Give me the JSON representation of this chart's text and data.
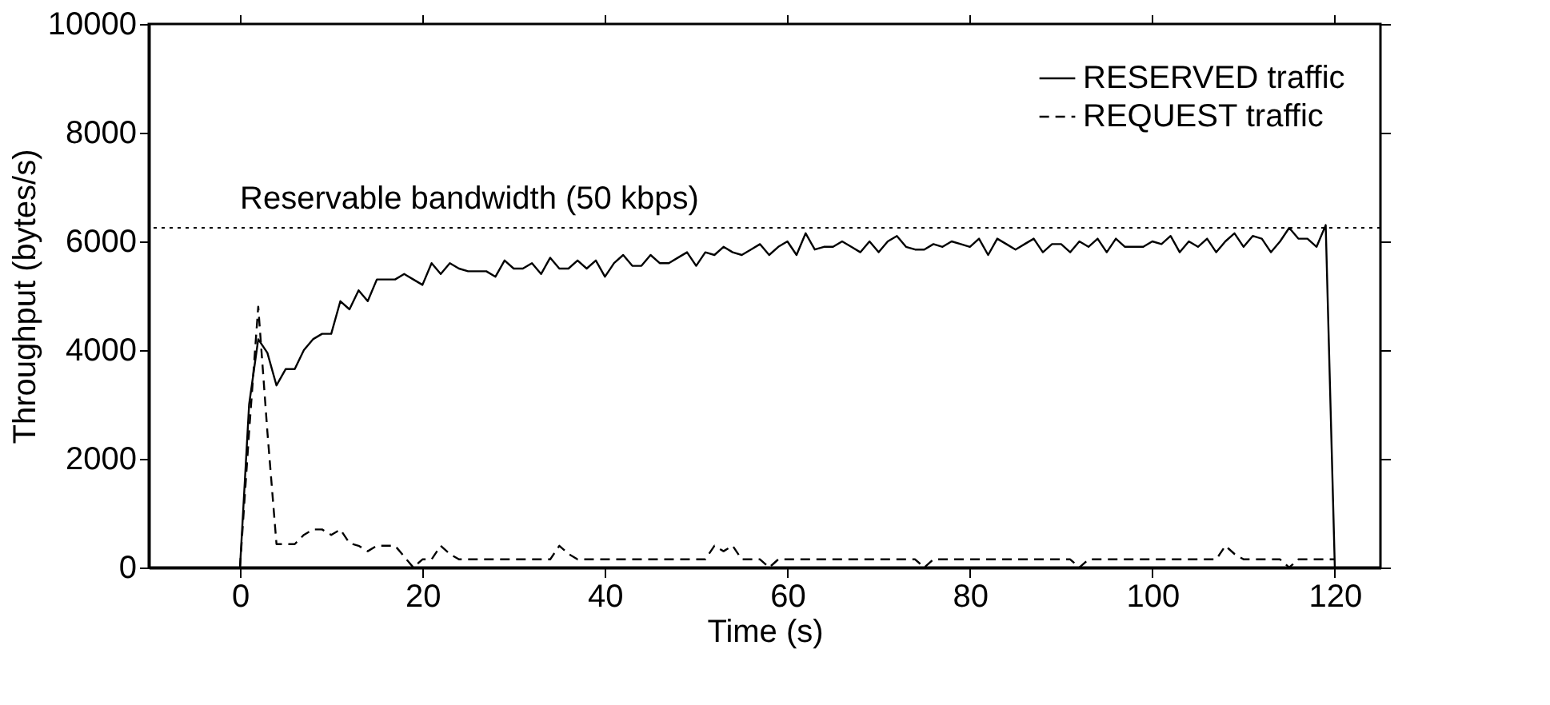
{
  "chart_data": {
    "type": "line",
    "xlabel": "Time (s)",
    "ylabel": "Throughput (bytes/s)",
    "x": [
      0,
      1,
      2,
      3,
      4,
      5,
      6,
      7,
      8,
      9,
      10,
      11,
      12,
      13,
      14,
      15,
      16,
      17,
      18,
      19,
      20,
      21,
      22,
      23,
      24,
      25,
      26,
      27,
      28,
      29,
      30,
      31,
      32,
      33,
      34,
      35,
      36,
      37,
      38,
      39,
      40,
      41,
      42,
      43,
      44,
      45,
      46,
      47,
      48,
      49,
      50,
      51,
      52,
      53,
      54,
      55,
      56,
      57,
      58,
      59,
      60,
      61,
      62,
      63,
      64,
      65,
      66,
      67,
      68,
      69,
      70,
      71,
      72,
      73,
      74,
      75,
      76,
      77,
      78,
      79,
      80,
      81,
      82,
      83,
      84,
      85,
      86,
      87,
      88,
      89,
      90,
      91,
      92,
      93,
      94,
      95,
      96,
      97,
      98,
      99,
      100,
      101,
      102,
      103,
      104,
      105,
      106,
      107,
      108,
      109,
      110,
      111,
      112,
      113,
      114,
      115,
      116,
      117,
      118,
      119,
      120
    ],
    "series": [
      {
        "name": "RESERVED traffic",
        "color": "#000000",
        "line_style": "solid",
        "values": [
          0,
          3000,
          4200,
          3950,
          3350,
          3650,
          3650,
          4000,
          4200,
          4300,
          4300,
          4900,
          4750,
          5100,
          4900,
          5300,
          5300,
          5300,
          5400,
          5300,
          5200,
          5600,
          5400,
          5600,
          5500,
          5450,
          5450,
          5450,
          5350,
          5650,
          5500,
          5500,
          5600,
          5400,
          5700,
          5500,
          5500,
          5650,
          5500,
          5650,
          5350,
          5600,
          5750,
          5550,
          5550,
          5750,
          5600,
          5600,
          5700,
          5800,
          5550,
          5800,
          5750,
          5900,
          5800,
          5750,
          5850,
          5950,
          5750,
          5900,
          6000,
          5750,
          6150,
          5850,
          5900,
          5900,
          6000,
          5900,
          5800,
          6000,
          5800,
          6000,
          6100,
          5900,
          5850,
          5850,
          5950,
          5900,
          6000,
          5950,
          5900,
          6050,
          5750,
          6050,
          5950,
          5850,
          5950,
          6050,
          5800,
          5950,
          5950,
          5800,
          6000,
          5900,
          6050,
          5800,
          6050,
          5900,
          5900,
          5900,
          6000,
          5950,
          6100,
          5800,
          6000,
          5900,
          6050,
          5800,
          6000,
          6150,
          5900,
          6100,
          6050,
          5800,
          6000,
          6250,
          6050,
          6050,
          5900,
          6300,
          0
        ]
      },
      {
        "name": "REQUEST traffic",
        "color": "#000000",
        "line_style": "dashed",
        "values": [
          0,
          2500,
          4800,
          2500,
          430,
          430,
          430,
          600,
          700,
          700,
          600,
          700,
          450,
          400,
          300,
          400,
          400,
          400,
          200,
          0,
          150,
          150,
          400,
          250,
          150,
          150,
          150,
          150,
          150,
          150,
          150,
          150,
          150,
          150,
          150,
          400,
          250,
          150,
          150,
          150,
          150,
          150,
          150,
          150,
          150,
          150,
          150,
          150,
          150,
          150,
          150,
          150,
          400,
          300,
          400,
          150,
          150,
          150,
          0,
          150,
          150,
          150,
          150,
          150,
          150,
          150,
          150,
          150,
          150,
          150,
          150,
          150,
          150,
          150,
          150,
          0,
          150,
          150,
          150,
          150,
          150,
          150,
          150,
          150,
          150,
          150,
          150,
          150,
          150,
          150,
          150,
          150,
          0,
          150,
          150,
          150,
          150,
          150,
          150,
          150,
          150,
          150,
          150,
          150,
          150,
          150,
          150,
          150,
          400,
          250,
          150,
          150,
          150,
          150,
          150,
          0,
          150,
          150,
          150,
          150,
          150
        ]
      }
    ],
    "ref_lines": [
      {
        "axis": "y",
        "value": 6250,
        "label": "Reservable bandwidth (50 kbps)",
        "color": "#000000",
        "line_style": "dotted"
      }
    ],
    "xlim": [
      -10,
      125
    ],
    "xticks": [
      0,
      20,
      40,
      60,
      80,
      100,
      120
    ],
    "ylim": [
      0,
      10000
    ],
    "yticks": [
      0,
      2000,
      4000,
      6000,
      8000,
      10000
    ],
    "grid": false,
    "legend": "top right"
  }
}
